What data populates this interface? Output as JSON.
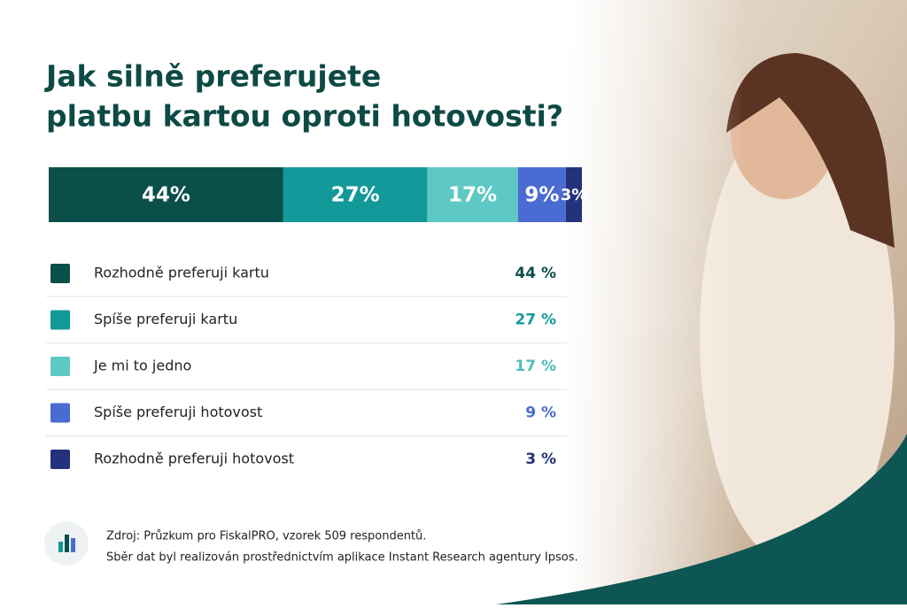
{
  "chart_data": {
    "type": "stacked-bar",
    "title": [
      "Jak silně preferujete",
      "platbu kartou oproti hotovosti?"
    ],
    "xlim": [
      0,
      100
    ],
    "series": [
      {
        "name": "Rozhodně preferuji kartu",
        "color": "#0b4f4a",
        "values": [
          44
        ],
        "value_labels": [
          "44%"
        ],
        "legend_value_labels": [
          "44 %"
        ]
      },
      {
        "name": "Spíše preferuji kartu",
        "color": "#14999a",
        "values": [
          27
        ],
        "value_labels": [
          "27%"
        ],
        "legend_value_labels": [
          "27 %"
        ]
      },
      {
        "name": "Je mi to jedno",
        "color": "#5ec9c4",
        "values": [
          17
        ],
        "value_labels": [
          "17%"
        ],
        "legend_value_labels": [
          "17 %"
        ]
      },
      {
        "name": "Spíše preferuji hotovost",
        "color": "#4a6bd1",
        "values": [
          9
        ],
        "value_labels": [
          "9%"
        ],
        "legend_value_labels": [
          "9 %"
        ]
      },
      {
        "name": "Rozhodně preferuji hotovost",
        "color": "#23327a",
        "values": [
          3
        ],
        "value_labels": [
          "3%"
        ],
        "legend_value_labels": [
          "3 %"
        ]
      }
    ],
    "source": [
      "Zdroj: Průzkum pro FiskalPRO, vzorek 509 respondentů.",
      "Sběr dat byl realizován prostřednictvím aplikace Instant Research agentury Ipsos."
    ]
  }
}
